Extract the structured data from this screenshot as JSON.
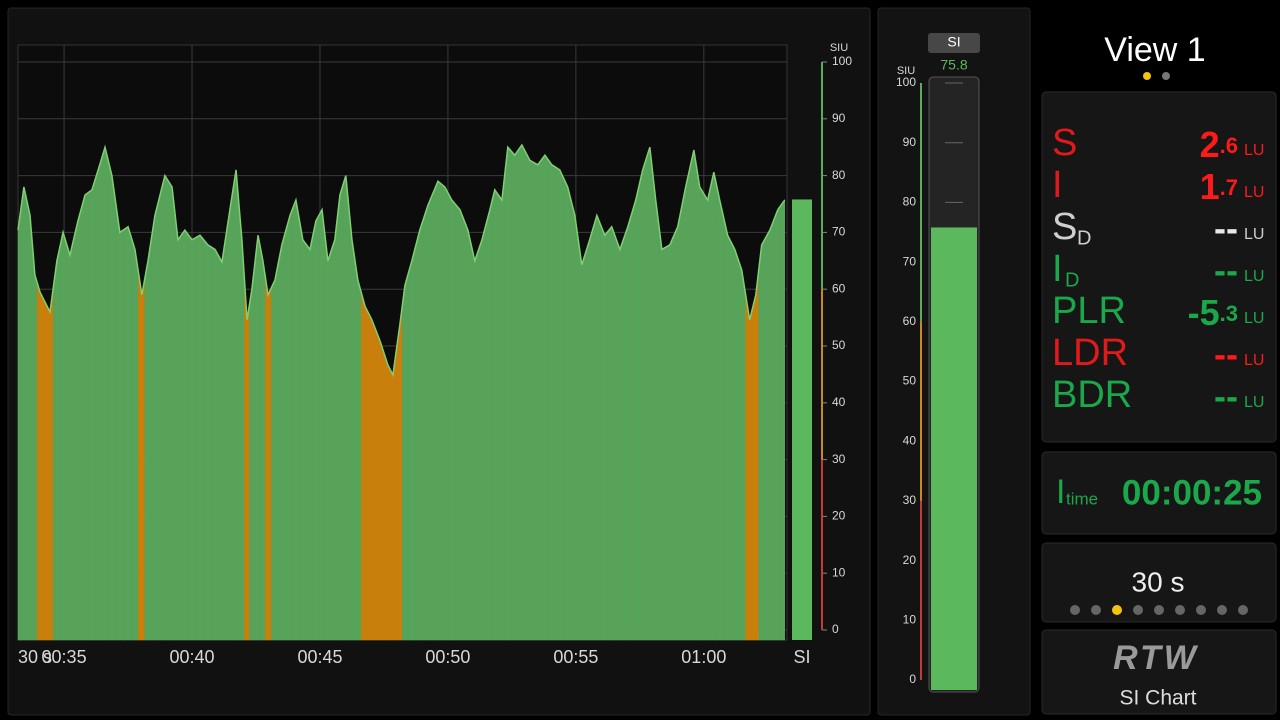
{
  "chart_data": {
    "type": "area",
    "x": [
      33.2,
      33.43,
      33.67,
      33.86,
      34.06,
      34.45,
      34.72,
      34.96,
      35.23,
      35.54,
      35.82,
      36.09,
      36.4,
      36.6,
      36.87,
      37.18,
      37.5,
      37.77,
      38.04,
      38.28,
      38.55,
      38.94,
      39.22,
      39.45,
      39.72,
      40,
      40.31,
      40.62,
      40.9,
      41.17,
      41.48,
      41.72,
      41.95,
      42.15,
      42.34,
      42.58,
      42.77,
      42.97,
      43.24,
      43.51,
      43.83,
      44.06,
      44.33,
      44.61,
      44.84,
      45.08,
      45.31,
      45.58,
      45.78,
      46.01,
      46.25,
      46.48,
      46.76,
      47.03,
      47.34,
      47.65,
      47.85,
      48.12,
      48.32,
      48.59,
      48.9,
      49.22,
      49.61,
      49.88,
      50.15,
      50.47,
      50.78,
      51.05,
      51.33,
      51.64,
      51.83,
      52.11,
      52.34,
      52.61,
      52.89,
      53.2,
      53.51,
      53.79,
      54.06,
      54.37,
      54.68,
      54.96,
      55.23,
      55.54,
      55.82,
      56.13,
      56.4,
      56.72,
      57.03,
      57.34,
      57.61,
      57.89,
      58.12,
      58.36,
      58.67,
      58.98,
      59.29,
      59.61,
      59.84,
      60.15,
      60.39,
      60.62,
      60.93,
      61.21,
      61.48,
      61.79,
      62.03,
      62.26,
      62.58,
      62.89,
      63.16
    ],
    "values": [
      70.4,
      78,
      73,
      62.5,
      59.5,
      56,
      65,
      70,
      66,
      72,
      76.6,
      77.5,
      82,
      85,
      80,
      70,
      71,
      67,
      59,
      65,
      73,
      80,
      78,
      68.7,
      70.4,
      68.7,
      69.5,
      67.8,
      67,
      64.8,
      74,
      81,
      68.7,
      54.6,
      60,
      69.5,
      65,
      59,
      61.6,
      67.8,
      73,
      75.7,
      68.7,
      67,
      72,
      74,
      65,
      68.7,
      76.6,
      80,
      68.7,
      61.6,
      57,
      54.6,
      51,
      46.7,
      44.9,
      53.7,
      60.7,
      65,
      70.4,
      74.8,
      79,
      78,
      75.7,
      74,
      70.4,
      65,
      68.7,
      74,
      77.5,
      75.7,
      85,
      83.6,
      85.4,
      82.7,
      81.9,
      83.6,
      81.9,
      81,
      78,
      73,
      64.3,
      68.7,
      73,
      69.5,
      71,
      67,
      71,
      75.7,
      81,
      85,
      75.7,
      67,
      67.8,
      71,
      78,
      84.5,
      78,
      75.7,
      80.6,
      75.7,
      69.5,
      67,
      63.4,
      54.6,
      59,
      67.8,
      70.4,
      74,
      75.7
    ],
    "xlim": [
      33.2,
      63.25
    ],
    "xticks": [
      {
        "value": 35,
        "label": "00:35"
      },
      {
        "value": 40,
        "label": "00:40"
      },
      {
        "value": 45,
        "label": "00:45"
      },
      {
        "value": 50,
        "label": "00:50"
      },
      {
        "value": 55,
        "label": "00:55"
      },
      {
        "value": 60,
        "label": "01:00"
      }
    ],
    "ylim": [
      0,
      100
    ],
    "yticks": [
      0,
      10,
      20,
      30,
      40,
      50,
      60,
      70,
      80,
      90,
      100
    ],
    "y_label": "SIU",
    "grid": true,
    "threshold": 60,
    "color": "#57a35a",
    "below_color": "#c97f0c",
    "line_color": "#80cf72",
    "zones": [
      {
        "from": 0,
        "to": 30,
        "color": "#c23a3a"
      },
      {
        "from": 30,
        "to": 60,
        "color": "#c98a1c"
      },
      {
        "from": 60,
        "to": 100,
        "color": "#5aae5a"
      }
    ],
    "time_span": "30 s",
    "current": {
      "name": "SI",
      "value": 75.8,
      "color": "#5cb85c"
    }
  },
  "meter": {
    "label": "SI",
    "value": 75.8,
    "unit": "SIU",
    "ylim": [
      0,
      100
    ],
    "yticks": [
      0,
      10,
      20,
      30,
      40,
      50,
      60,
      70,
      80,
      90,
      100
    ],
    "color": "#5cb85c"
  },
  "view": {
    "title": "View 1"
  },
  "readouts": [
    {
      "label": "S",
      "value": 2.6,
      "unit": "LU",
      "label_color": "#e01a1a",
      "color": "#ff1a1a"
    },
    {
      "label": "I",
      "value": 1.7,
      "unit": "LU",
      "label_color": "#e01a1a",
      "color": "#ff1a1a"
    },
    {
      "label": "S",
      "sub": "D",
      "value": "--",
      "unit": "LU",
      "label_color": "#cfcfcf",
      "color": "#e8e8e8"
    },
    {
      "label": "I",
      "sub": "D",
      "value": "--",
      "unit": "LU",
      "label_color": "#1aa84a",
      "color": "#1aa84a"
    },
    {
      "label": "PLR",
      "value": -5.3,
      "unit": "LU",
      "label_color": "#1aa84a",
      "color": "#1aa84a"
    },
    {
      "label": "LDR",
      "value": "--",
      "unit": "LU",
      "label_color": "#e01a1a",
      "color": "#ff1a1a"
    },
    {
      "label": "BDR",
      "value": "--",
      "unit": "LU",
      "label_color": "#1aa84a",
      "color": "#1aa84a"
    }
  ],
  "itime": {
    "label": "I",
    "sub": "time",
    "value": "00:00:25"
  },
  "timescale": "30 s",
  "logo": "RTW",
  "mode": "SI Chart"
}
